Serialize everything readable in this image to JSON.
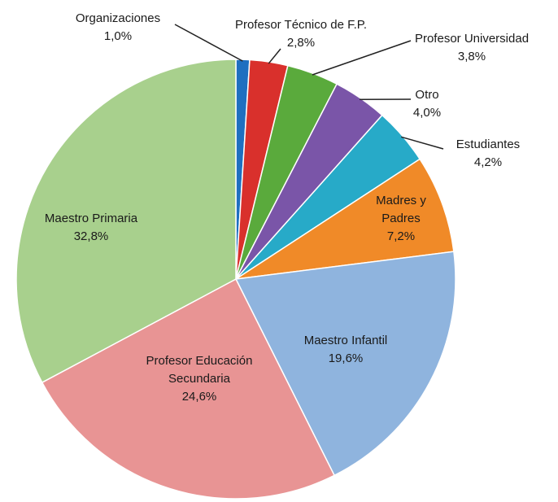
{
  "chart_data": {
    "type": "pie",
    "categories": [
      "Organizaciones",
      "Profesor Técnico de F.P.",
      "Profesor Universidad",
      "Otro",
      "Estudiantes",
      "Madres y Padres",
      "Maestro Infantil",
      "Profesor Educación Secundaria",
      "Maestro Primaria"
    ],
    "values": [
      1.0,
      2.8,
      3.8,
      4.0,
      4.2,
      7.2,
      19.6,
      24.6,
      32.8
    ],
    "value_labels": [
      "1,0%",
      "2,8%",
      "3,8%",
      "4,0%",
      "4,2%",
      "7,2%",
      "19,6%",
      "24,6%",
      "32,8%"
    ],
    "colors": [
      "#1f6fc0",
      "#d9302c",
      "#5aaa3c",
      "#7a55a8",
      "#27aac8",
      "#f08a28",
      "#8fb4de",
      "#e89494",
      "#a8d08d"
    ]
  }
}
